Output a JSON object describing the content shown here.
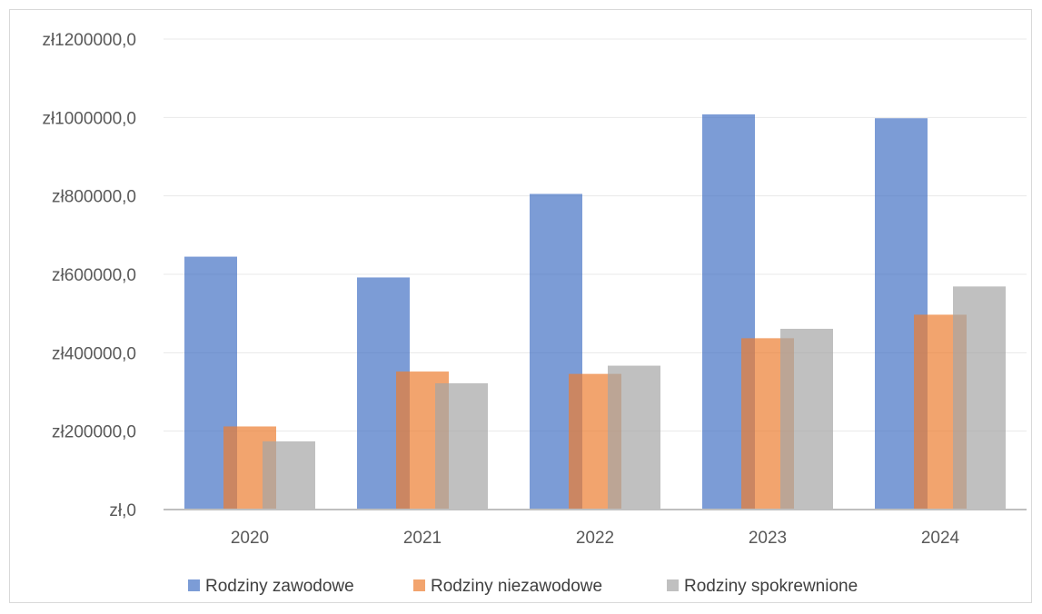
{
  "chart_data": {
    "type": "bar",
    "title": "",
    "xlabel": "",
    "ylabel": "",
    "categories": [
      "2020",
      "2021",
      "2022",
      "2023",
      "2024"
    ],
    "series": [
      {
        "name": "Rodziny zawodowe",
        "color": "#4472C4",
        "values": [
          645000,
          592000,
          805000,
          1008000,
          998000
        ]
      },
      {
        "name": "Rodziny niezawodowe",
        "color": "#ED7D31",
        "values": [
          212000,
          352000,
          346000,
          437000,
          497000
        ]
      },
      {
        "name": "Rodziny spokrewnione",
        "color": "#A5A5A5",
        "values": [
          174000,
          322000,
          367000,
          461000,
          569000
        ]
      }
    ],
    "ylim": [
      0,
      1200000
    ],
    "yticks": [
      0,
      200000,
      400000,
      600000,
      800000,
      1000000,
      1200000
    ],
    "ytick_labels": [
      "zł,0",
      "zł200000,0",
      "zł400000,0",
      "zł600000,0",
      "zł800000,0",
      "zł1000000,0",
      "zł1200000,0"
    ],
    "grid": true,
    "legend_position": "bottom",
    "bar_opacity": 0.7
  }
}
